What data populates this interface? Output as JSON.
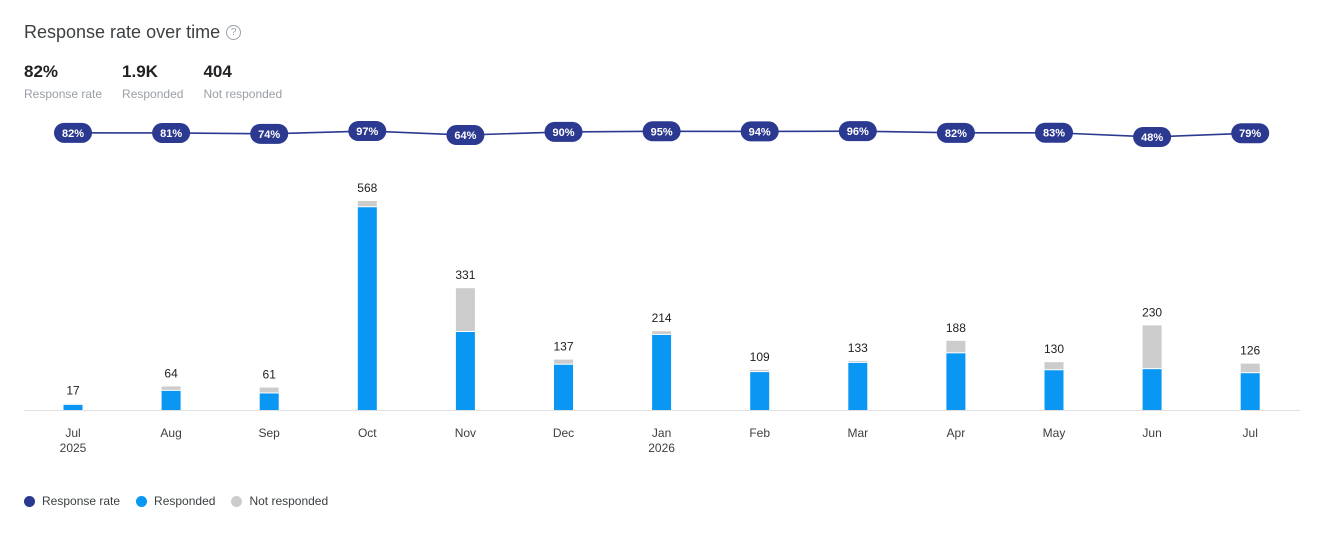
{
  "header": {
    "title": "Response rate over time"
  },
  "kpis": [
    {
      "value": "82%",
      "label": "Response rate"
    },
    {
      "value": "1.9K",
      "label": "Responded"
    },
    {
      "value": "404",
      "label": "Not responded"
    }
  ],
  "chart_data": {
    "type": "bar",
    "stacked": true,
    "categories": [
      "Jul 2025",
      "Aug",
      "Sep",
      "Oct",
      "Nov",
      "Dec",
      "Jan 2026",
      "Feb",
      "Mar",
      "Apr",
      "May",
      "Jun",
      "Jul"
    ],
    "series": [
      {
        "name": "Response rate",
        "type": "line",
        "color": "#2b3990",
        "values": [
          82,
          81,
          74,
          97,
          64,
          90,
          95,
          94,
          96,
          82,
          83,
          48,
          79
        ],
        "value_labels": [
          "82%",
          "81%",
          "74%",
          "97%",
          "64%",
          "90%",
          "95%",
          "94%",
          "96%",
          "82%",
          "83%",
          "48%",
          "79%"
        ]
      },
      {
        "name": "Responded",
        "type": "bar",
        "color": "#0a97f3",
        "values": [
          14,
          52,
          45,
          551,
          212,
          123,
          204,
          103,
          128,
          154,
          108,
          111,
          100
        ]
      },
      {
        "name": "Not responded",
        "type": "bar",
        "color": "#cccccc",
        "values": [
          3,
          12,
          16,
          17,
          119,
          14,
          10,
          6,
          5,
          34,
          22,
          119,
          26
        ]
      }
    ],
    "totals": [
      17,
      64,
      61,
      568,
      331,
      137,
      214,
      109,
      133,
      188,
      130,
      230,
      126
    ],
    "legend": "bottom-left"
  }
}
